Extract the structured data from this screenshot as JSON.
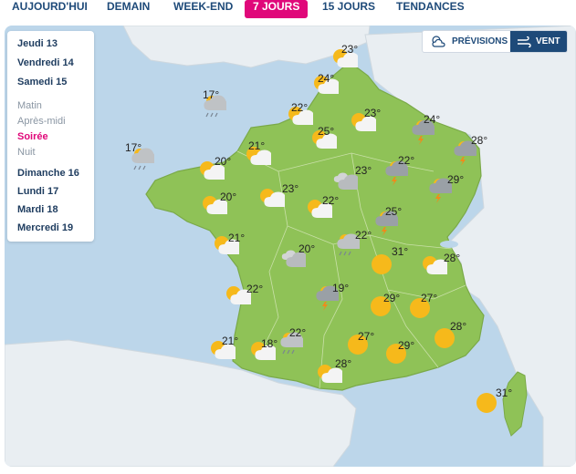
{
  "nav": {
    "tabs": [
      "AUJOURD'HUI",
      "DEMAIN",
      "WEEK-END",
      "7 JOURS",
      "15 JOURS",
      "TENDANCES"
    ],
    "active_tab": "7 JOURS",
    "accent_color": "#e0087a"
  },
  "days": {
    "top": [
      "Jeudi 13",
      "Vendredi 14",
      "Samedi 15"
    ],
    "periods": [
      "Matin",
      "Après-midi",
      "Soirée",
      "Nuit"
    ],
    "selected_period": "Soirée",
    "bottom": [
      "Dimanche 16",
      "Lundi 17",
      "Mardi 18",
      "Mercredi 19"
    ]
  },
  "toggle": {
    "previsions_label": "PRÉVISIONS",
    "vent_label": "VENT",
    "active": "VENT",
    "active_color": "#1e4a79"
  },
  "map_colors": {
    "sea": "#bcd6ea",
    "land_outside": "#e9eef2",
    "france": "#8fc257"
  },
  "cities": [
    {
      "temp": "23°",
      "icon": "sun-cloud-icon"
    },
    {
      "temp": "24°",
      "icon": "sun-cloud-icon"
    },
    {
      "temp": "17°",
      "icon": "cloud-rain-icon"
    },
    {
      "temp": "22°",
      "icon": "sun-cloud-icon"
    },
    {
      "temp": "23°",
      "icon": "sun-cloud-icon"
    },
    {
      "temp": "24°",
      "icon": "storm-icon"
    },
    {
      "temp": "25°",
      "icon": "sun-cloud-icon"
    },
    {
      "temp": "17°",
      "icon": "cloud-rain-icon"
    },
    {
      "temp": "21°",
      "icon": "sun-cloud-icon"
    },
    {
      "temp": "28°",
      "icon": "storm-icon"
    },
    {
      "temp": "20°",
      "icon": "sun-cloud-icon"
    },
    {
      "temp": "22°",
      "icon": "storm-icon"
    },
    {
      "temp": "23°",
      "icon": "cloud-icon"
    },
    {
      "temp": "29°",
      "icon": "storm-icon"
    },
    {
      "temp": "23°",
      "icon": "sun-cloud-icon"
    },
    {
      "temp": "20°",
      "icon": "sun-cloud-icon"
    },
    {
      "temp": "22°",
      "icon": "sun-cloud-icon"
    },
    {
      "temp": "25°",
      "icon": "storm-icon"
    },
    {
      "temp": "21°",
      "icon": "sun-cloud-icon"
    },
    {
      "temp": "22°",
      "icon": "cloud-rain-icon"
    },
    {
      "temp": "31°",
      "icon": "sun-icon"
    },
    {
      "temp": "20°",
      "icon": "cloud-icon"
    },
    {
      "temp": "28°",
      "icon": "sun-cloud-icon"
    },
    {
      "temp": "22°",
      "icon": "sun-cloud-icon"
    },
    {
      "temp": "19°",
      "icon": "storm-icon"
    },
    {
      "temp": "29°",
      "icon": "sun-icon"
    },
    {
      "temp": "27°",
      "icon": "sun-icon"
    },
    {
      "temp": "21°",
      "icon": "sun-cloud-icon"
    },
    {
      "temp": "18°",
      "icon": "sun-cloud-icon"
    },
    {
      "temp": "22°",
      "icon": "cloud-rain-icon"
    },
    {
      "temp": "27°",
      "icon": "sun-icon"
    },
    {
      "temp": "29°",
      "icon": "sun-icon"
    },
    {
      "temp": "28°",
      "icon": "sun-icon"
    },
    {
      "temp": "28°",
      "icon": "sun-cloud-icon"
    },
    {
      "temp": "31°",
      "icon": "sun-icon"
    }
  ]
}
